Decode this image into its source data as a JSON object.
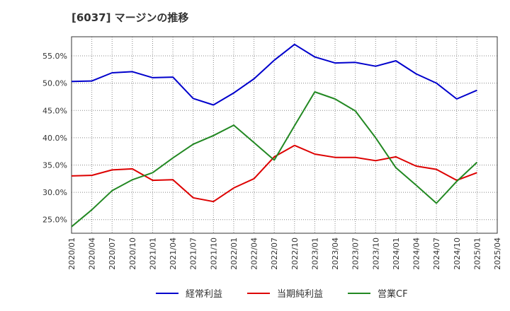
{
  "title": "[6037]  マージンの推移",
  "chart_data": {
    "type": "line",
    "title": "[6037]  マージンの推移",
    "xlabel": "",
    "ylabel": "",
    "x": [
      "2020/01",
      "2020/04",
      "2020/07",
      "2020/10",
      "2021/01",
      "2021/04",
      "2021/07",
      "2021/10",
      "2022/01",
      "2022/04",
      "2022/07",
      "2022/10",
      "2023/01",
      "2023/04",
      "2023/07",
      "2023/10",
      "2024/01",
      "2024/04",
      "2024/07",
      "2024/10",
      "2025/01"
    ],
    "x_ticks": [
      "2020/01",
      "2020/04",
      "2020/07",
      "2020/10",
      "2021/01",
      "2021/04",
      "2021/07",
      "2021/10",
      "2022/01",
      "2022/04",
      "2022/07",
      "2022/10",
      "2023/01",
      "2023/04",
      "2023/07",
      "2023/10",
      "2024/01",
      "2024/04",
      "2024/07",
      "2024/10",
      "2025/01",
      "2025/04"
    ],
    "y_ticks": [
      25,
      30,
      35,
      40,
      45,
      50,
      55
    ],
    "y_tick_labels": [
      "25.0%",
      "30.0%",
      "35.0%",
      "40.0%",
      "45.0%",
      "50.0%",
      "55.0%"
    ],
    "ylim": [
      22.5,
      58.5
    ],
    "grid": true,
    "legend_position": "bottom",
    "series": [
      {
        "name": "経常利益",
        "color": "#0000cc",
        "values": [
          50.3,
          50.4,
          51.9,
          52.1,
          51.0,
          51.1,
          47.2,
          46.0,
          48.2,
          50.8,
          54.2,
          57.1,
          54.8,
          53.7,
          53.8,
          53.1,
          54.1,
          51.7,
          50.0,
          47.1,
          48.7
        ]
      },
      {
        "name": "当期純利益",
        "color": "#dd0000",
        "values": [
          33.0,
          33.1,
          34.1,
          34.3,
          32.2,
          32.3,
          29.0,
          28.3,
          30.8,
          32.5,
          36.5,
          38.6,
          37.0,
          36.4,
          36.4,
          35.8,
          36.5,
          34.8,
          34.2,
          32.2,
          33.6
        ]
      },
      {
        "name": "営業CF",
        "color": "#228822",
        "values": [
          23.7,
          26.8,
          30.3,
          32.3,
          33.6,
          36.3,
          38.8,
          40.4,
          42.3,
          39.1,
          35.9,
          42.2,
          48.4,
          47.1,
          44.9,
          40.0,
          34.5,
          31.3,
          28.0,
          32.0,
          35.5
        ]
      }
    ]
  }
}
